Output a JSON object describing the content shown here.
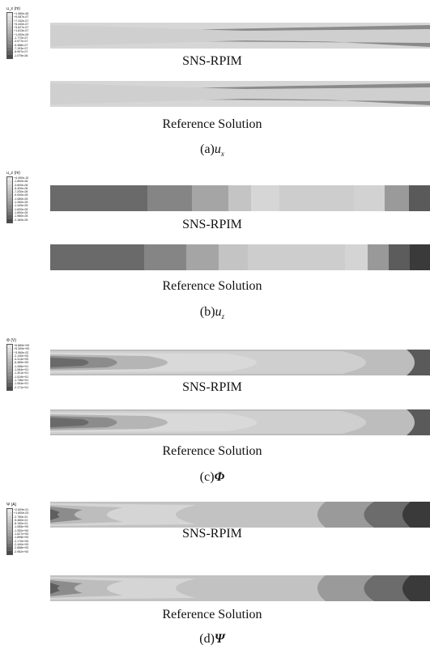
{
  "panels": [
    {
      "id": "a",
      "legend_title": "u_x (m)",
      "legend_values": [
        "+1.080e-06",
        "+9.087e-07",
        "+7.242e-07",
        "+5.440e-07",
        "+3.627e-07",
        "+1.813e-07",
        "+1.000e-09",
        "-1.772e-07",
        "-3.577e-07",
        "-5.388e-07",
        "-7.193e-07",
        "-8.997e-07",
        "-1.079e-06"
      ],
      "top_label": "SNS-RPIM",
      "bottom_label": "Reference Solution",
      "caption_prefix": "(a)",
      "caption_symbol": "u",
      "caption_sub": "x"
    },
    {
      "id": "b",
      "legend_title": "u_z (m)",
      "legend_values": [
        "+4.400e-10",
        "-1.800e-06",
        "-3.600e-06",
        "-5.400e-06",
        "-7.200e-06",
        "-9.000e-06",
        "-1.080e-05",
        "-1.260e-05",
        "-1.440e-05",
        "-1.620e-05",
        "-1.800e-05",
        "-1.980e-05",
        "-2.160e-05"
      ],
      "top_label": "SNS-RPIM",
      "bottom_label": "Reference Solution",
      "caption_prefix": "(b)",
      "caption_symbol": "u",
      "caption_sub": "z"
    },
    {
      "id": "c",
      "legend_title": "Φ (V)",
      "legend_values": [
        "+6.889e+00",
        "+5.309e+00",
        "+3.960e-02",
        "-2.140e+00",
        "-4.314e+00",
        "-6.489e+00",
        "-1.266e+01",
        "-1.084e+01",
        "-1.301e+01",
        "-1.519e+01",
        "-1.736e+01",
        "-1.954e+01",
        "-2.171e+01"
      ],
      "top_label": "SNS-RPIM",
      "bottom_label": "Reference Solution",
      "caption_prefix": "(c)",
      "caption_symbol": "Φ",
      "caption_sub": ""
    },
    {
      "id": "d",
      "legend_title": "Ψ (A)",
      "legend_values": [
        "+2.609e-01",
        "+1.800e-03",
        "-2.750e-01",
        "-5.460e-01",
        "-8.150e-01",
        "-1.085e+00",
        "-1.352e+00",
        "-1.627e+00",
        "-1.898e+00",
        "-2.170e+00",
        "-2.440e+00",
        "-2.688e+00",
        "-2.962e+00"
      ],
      "top_label": "SNS-RPIM",
      "bottom_label": "Reference Solution",
      "caption_prefix": "(d)",
      "caption_symbol": "Ψ",
      "caption_sub": ""
    }
  ],
  "colors": {
    "legend_scale": [
      "#e8e8e8",
      "#dddddd",
      "#d2d2d2",
      "#c8c8c8",
      "#bdbdbd",
      "#b3b3b3",
      "#a8a8a8",
      "#9d9d9d",
      "#909090",
      "#828282",
      "#737373",
      "#626262",
      "#4a4a4a"
    ]
  }
}
